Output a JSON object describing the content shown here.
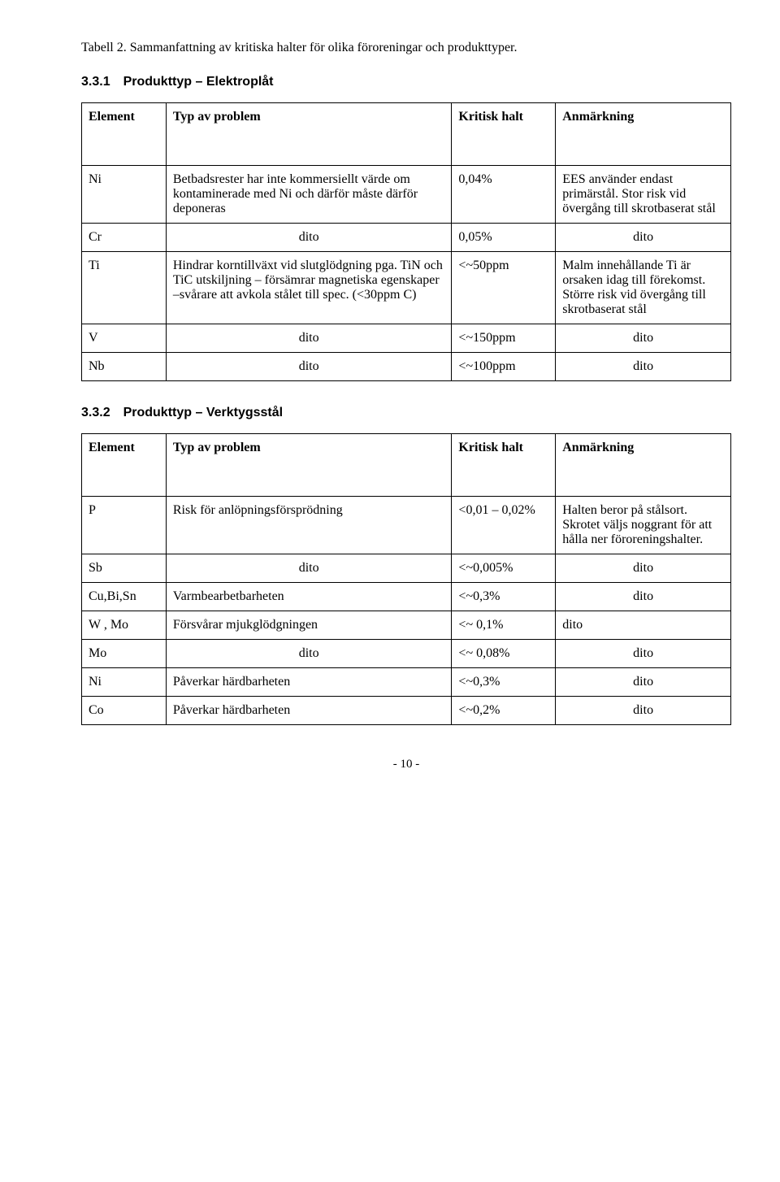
{
  "caption": "Tabell 2. Sammanfattning av kritiska halter för olika föroreningar och produkttyper.",
  "section1": {
    "heading": "3.3.1 Produkttyp – Elektroplåt",
    "headers": {
      "el": "Element",
      "typ": "Typ av problem",
      "halt": "Kritisk halt",
      "anm": "Anmärkning"
    },
    "rows": [
      {
        "el": "Ni",
        "typ": "Betbadsrester har inte kommersiellt värde om kontaminerade med Ni och därför måste därför deponeras",
        "halt": "0,04%",
        "anm": "EES använder endast primärstål. Stor risk vid övergång till skrotbaserat stål"
      },
      {
        "el": "Cr",
        "typ": "dito",
        "halt": "0,05%",
        "anm": "dito"
      },
      {
        "el": "Ti",
        "typ": "Hindrar korntillväxt vid slutglödgning pga. TiN och TiC utskiljning – försämrar magnetiska egenskaper –svårare att avkola stålet till spec. (<30ppm C)",
        "halt": "<~50ppm",
        "anm": "Malm innehållande Ti är orsaken idag till förekomst. Större risk vid övergång till skrotbaserat stål"
      },
      {
        "el": "V",
        "typ": "dito",
        "halt": "<~150ppm",
        "anm": "dito"
      },
      {
        "el": "Nb",
        "typ": "dito",
        "halt": "<~100ppm",
        "anm": "dito"
      }
    ]
  },
  "section2": {
    "heading": "3.3.2 Produkttyp – Verktygsstål",
    "headers": {
      "el": "Element",
      "typ": "Typ av problem",
      "halt": "Kritisk halt",
      "anm": "Anmärkning"
    },
    "rows": [
      {
        "el": "P",
        "typ": "Risk för anlöpningsförsprödning",
        "halt": "<0,01 – 0,02%",
        "anm": "Halten beror  på stålsort. Skrotet väljs noggrant för att hålla ner föroreningshalter."
      },
      {
        "el": "Sb",
        "typ": "dito",
        "halt": "<~0,005%",
        "anm": "dito"
      },
      {
        "el": "Cu,Bi,Sn",
        "typ": "Varmbearbetbarheten",
        "halt": "<~0,3%",
        "anm": "dito"
      },
      {
        "el": "W , Mo",
        "typ": "Försvårar mjukglödgningen",
        "halt": "<~ 0,1%",
        "anm": "dito"
      },
      {
        "el": "Mo",
        "typ": "dito",
        "halt": "<~ 0,08%",
        "anm": "dito"
      },
      {
        "el": "Ni",
        "typ": "Påverkar härdbarheten",
        "halt": "<~0,3%",
        "anm": "dito"
      },
      {
        "el": "Co",
        "typ": "Påverkar härdbarheten",
        "halt": "<~0,2%",
        "anm": "dito"
      }
    ]
  },
  "pageNumber": "- 10 -",
  "typAlignIndices": {
    "s1": [
      1,
      3,
      4
    ],
    "s2": [
      1,
      4
    ]
  },
  "anmAlignIndices": {
    "s1": [
      1,
      3,
      4
    ],
    "s2": [
      1,
      2,
      4,
      5,
      6
    ]
  }
}
